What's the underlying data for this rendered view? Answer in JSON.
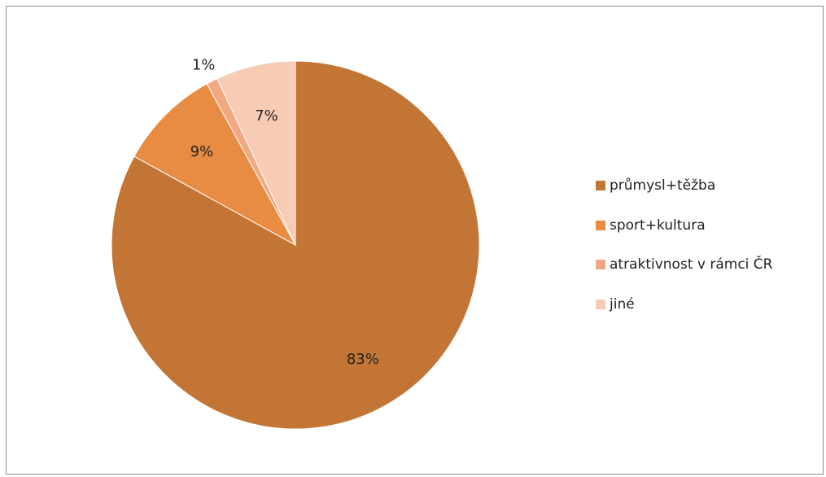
{
  "chart_data": {
    "type": "pie",
    "title": "",
    "categories": [
      "průmysl+těžba",
      "sport+kultura",
      "atraktivnost v rámci ČR",
      "jiné"
    ],
    "values": [
      83,
      9,
      1,
      7
    ],
    "labels": [
      "83%",
      "9%",
      "1%",
      "7%"
    ],
    "colors": [
      "#c27535",
      "#e88c44",
      "#f2a882",
      "#f7cbb4"
    ],
    "legend_position": "right"
  }
}
